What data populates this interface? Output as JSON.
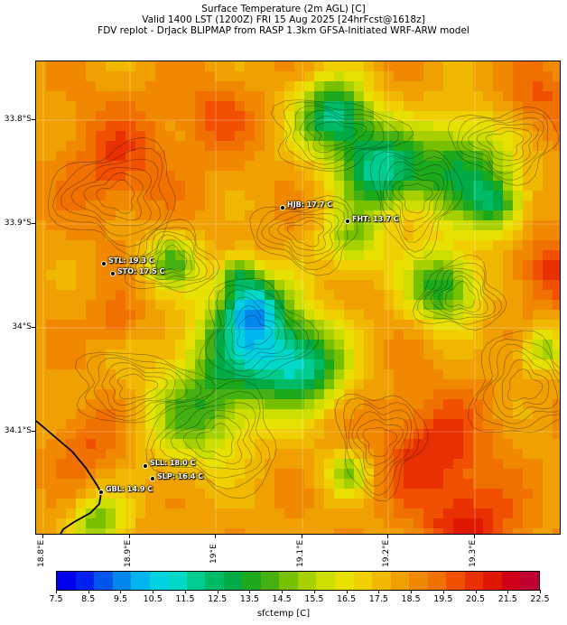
{
  "title": {
    "line1": "Surface Temperature (2m AGL) [C]",
    "line2": "Valid 1400 LST (1200Z) FRI 15 Aug 2025 [24hrFcst@1618z]",
    "line3": "FDV replot - DrJack BLIPMAP from RASP 1.3km GFSA-Initiated WRF-ARW model"
  },
  "axes": {
    "lat_labels": [
      "33.8°S",
      "33.9°S",
      "34°S",
      "34.1°S"
    ],
    "lon_labels": [
      "18.8°E",
      "18.9°E",
      "19°E",
      "19.1°E",
      "19.2°E",
      "19.3°E"
    ]
  },
  "stations": [
    {
      "label": "HJB: 17.7 C"
    },
    {
      "label": "FHT: 13.7 C"
    },
    {
      "label": "STL: 19.3 C"
    },
    {
      "label": "STO: 17.5 C"
    },
    {
      "label": "SLL: 18.0 C"
    },
    {
      "label": "SLP: 16.4 C"
    },
    {
      "label": "GBL: 14.9 C"
    }
  ],
  "colorbar": {
    "label": "sfctemp [C]",
    "ticks": [
      "7.5",
      "8.5",
      "9.5",
      "10.5",
      "11.5",
      "12.5",
      "13.5",
      "14.5",
      "15.5",
      "16.5",
      "17.5",
      "18.5",
      "19.5",
      "20.5",
      "21.5",
      "22.5"
    ],
    "colors": [
      "#0000ee",
      "#0022f0",
      "#0055ee",
      "#0088ee",
      "#00b4ee",
      "#00d0e0",
      "#00d8c8",
      "#00cc90",
      "#00bb66",
      "#00aa44",
      "#1caa1c",
      "#44b011",
      "#77c000",
      "#a6d000",
      "#ccde00",
      "#e8e000",
      "#f0d000",
      "#f0b800",
      "#f0a000",
      "#f08800",
      "#f07000",
      "#f05000",
      "#e83000",
      "#e01800",
      "#d00018",
      "#c00030"
    ]
  }
}
